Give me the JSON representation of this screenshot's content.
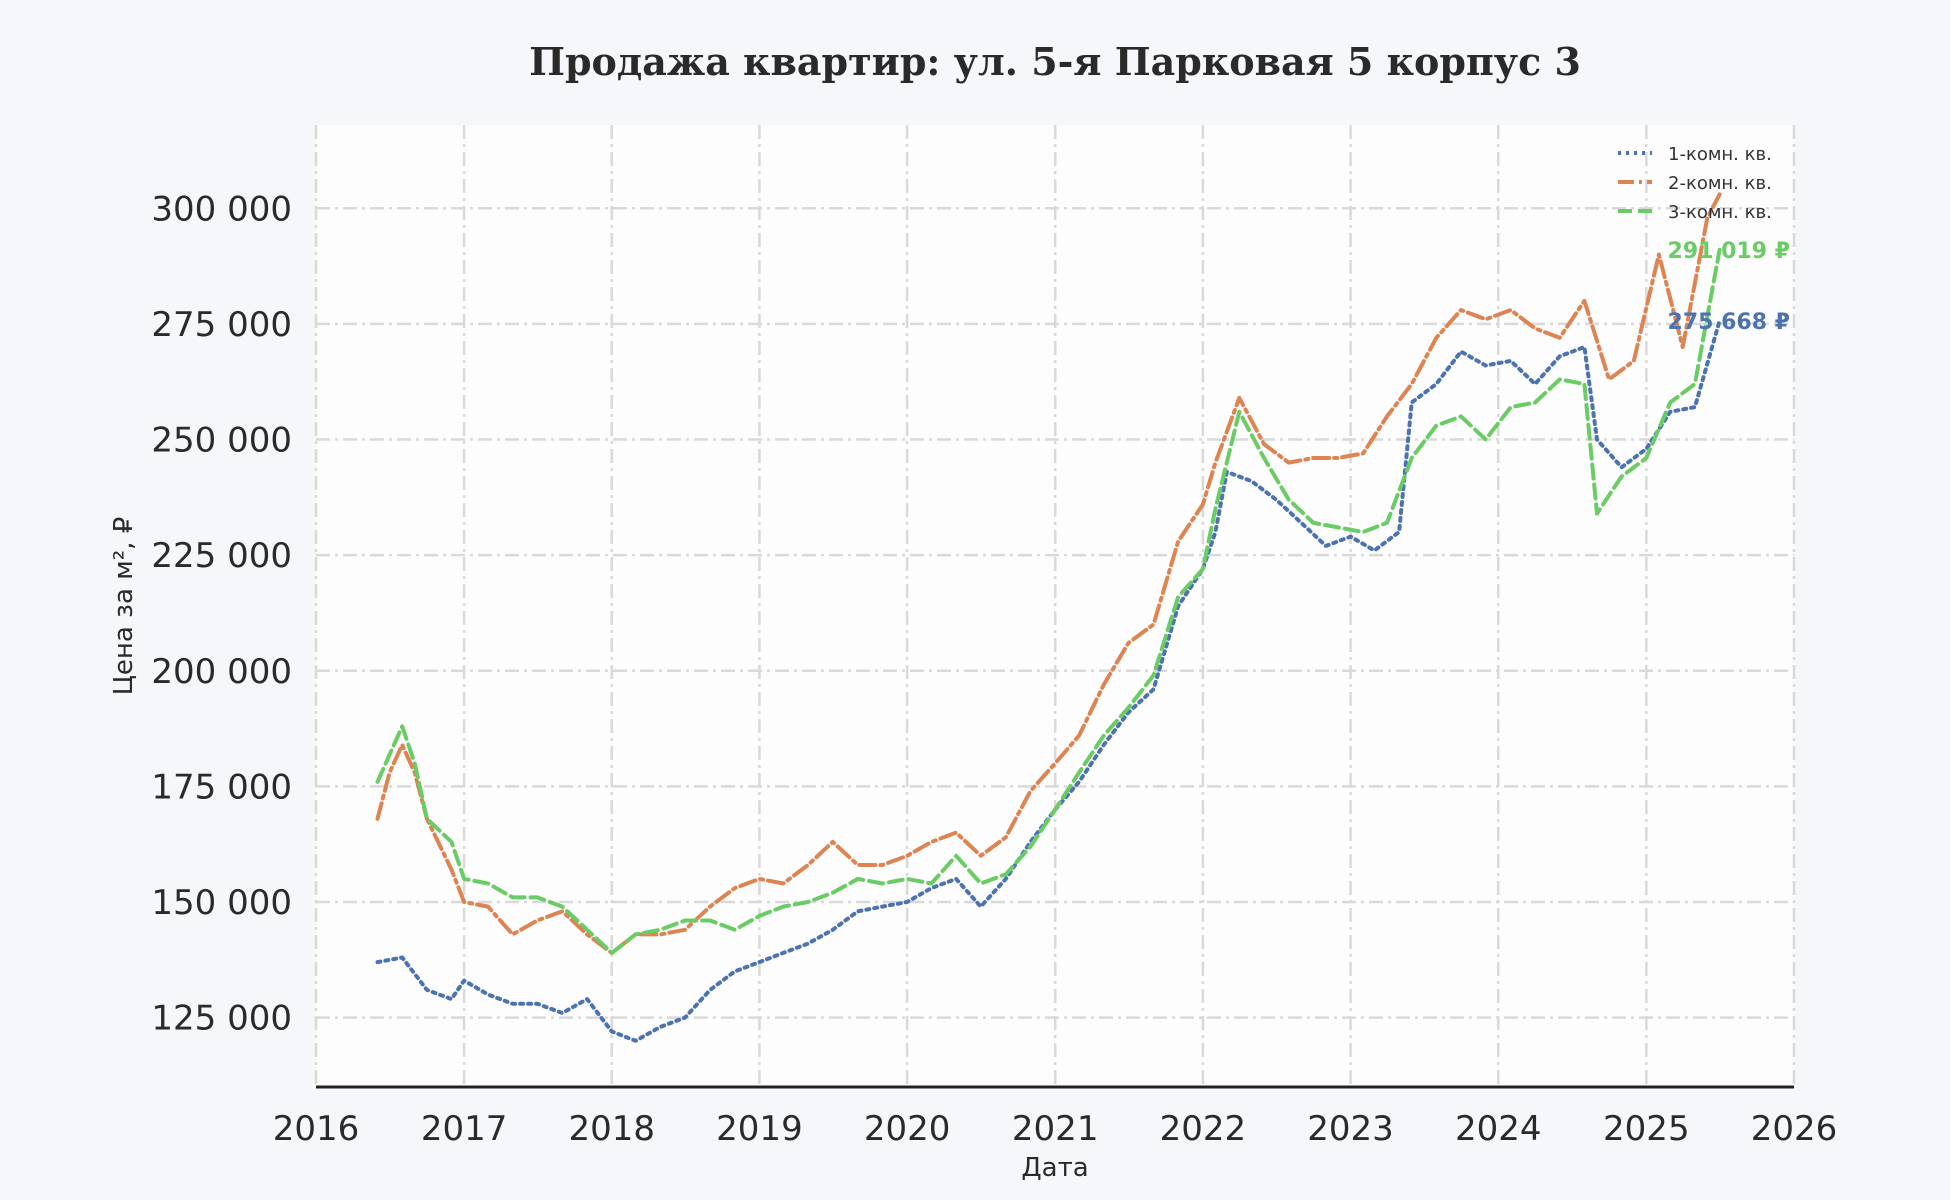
{
  "chart_data": {
    "type": "line",
    "title": "Продажа квартир: ул. 5-я Парковая 5 корпус 3",
    "xlabel": "Дата",
    "ylabel": "Цена за м², ₽",
    "xlim": [
      "2016-01-01",
      "2026-01-01"
    ],
    "ylim": [
      110000,
      318000
    ],
    "x_ticks": [
      "2016",
      "2017",
      "2018",
      "2019",
      "2020",
      "2021",
      "2022",
      "2023",
      "2024",
      "2025",
      "2026"
    ],
    "y_ticks": [
      {
        "value": 125000,
        "label": "125 000"
      },
      {
        "value": 150000,
        "label": "150 000"
      },
      {
        "value": 175000,
        "label": "175 000"
      },
      {
        "value": 200000,
        "label": "200 000"
      },
      {
        "value": 225000,
        "label": "225 000"
      },
      {
        "value": 250000,
        "label": "250 000"
      },
      {
        "value": 275000,
        "label": "275 000"
      },
      {
        "value": 300000,
        "label": "300 000"
      }
    ],
    "grid": true,
    "legend_position": "top-right",
    "series": [
      {
        "name": "1-комн. кв.",
        "color": "#4c72b0",
        "dash": "dotted",
        "end_label": "275 668 ₽",
        "points": [
          [
            "2016-06-01",
            137000
          ],
          [
            "2016-08-01",
            138000
          ],
          [
            "2016-10-01",
            131000
          ],
          [
            "2016-12-01",
            129000
          ],
          [
            "2017-01-01",
            133000
          ],
          [
            "2017-03-01",
            130000
          ],
          [
            "2017-05-01",
            128000
          ],
          [
            "2017-07-01",
            128000
          ],
          [
            "2017-09-01",
            126000
          ],
          [
            "2017-11-01",
            129000
          ],
          [
            "2018-01-01",
            122000
          ],
          [
            "2018-03-01",
            120000
          ],
          [
            "2018-05-01",
            123000
          ],
          [
            "2018-07-01",
            125000
          ],
          [
            "2018-09-01",
            131000
          ],
          [
            "2018-11-01",
            135000
          ],
          [
            "2019-01-01",
            137000
          ],
          [
            "2019-03-01",
            139000
          ],
          [
            "2019-05-01",
            141000
          ],
          [
            "2019-07-01",
            144000
          ],
          [
            "2019-09-01",
            148000
          ],
          [
            "2019-11-01",
            149000
          ],
          [
            "2020-01-01",
            150000
          ],
          [
            "2020-03-01",
            153000
          ],
          [
            "2020-05-01",
            155000
          ],
          [
            "2020-07-01",
            149000
          ],
          [
            "2020-09-01",
            155000
          ],
          [
            "2020-11-01",
            163000
          ],
          [
            "2021-01-01",
            170000
          ],
          [
            "2021-03-01",
            176000
          ],
          [
            "2021-05-01",
            184000
          ],
          [
            "2021-07-01",
            191000
          ],
          [
            "2021-09-01",
            196000
          ],
          [
            "2021-11-01",
            214000
          ],
          [
            "2022-01-01",
            222000
          ],
          [
            "2022-02-01",
            230000
          ],
          [
            "2022-03-01",
            243000
          ],
          [
            "2022-05-01",
            241000
          ],
          [
            "2022-07-01",
            237000
          ],
          [
            "2022-09-01",
            232000
          ],
          [
            "2022-11-01",
            227000
          ],
          [
            "2023-01-01",
            229000
          ],
          [
            "2023-03-01",
            226000
          ],
          [
            "2023-05-01",
            230000
          ],
          [
            "2023-06-01",
            258000
          ],
          [
            "2023-08-01",
            262000
          ],
          [
            "2023-10-01",
            269000
          ],
          [
            "2023-12-01",
            266000
          ],
          [
            "2024-02-01",
            267000
          ],
          [
            "2024-04-01",
            262000
          ],
          [
            "2024-06-01",
            268000
          ],
          [
            "2024-08-01",
            270000
          ],
          [
            "2024-09-01",
            250000
          ],
          [
            "2024-11-01",
            244000
          ],
          [
            "2025-01-01",
            248000
          ],
          [
            "2025-03-01",
            256000
          ],
          [
            "2025-05-01",
            257000
          ],
          [
            "2025-07-01",
            275668
          ]
        ]
      },
      {
        "name": "2-комн. кв.",
        "color": "#dd8452",
        "dash": "dashdot",
        "end_label": "",
        "points": [
          [
            "2016-06-01",
            168000
          ],
          [
            "2016-07-01",
            178000
          ],
          [
            "2016-08-01",
            184000
          ],
          [
            "2016-09-01",
            178000
          ],
          [
            "2016-10-01",
            168000
          ],
          [
            "2016-12-01",
            157000
          ],
          [
            "2017-01-01",
            150000
          ],
          [
            "2017-03-01",
            149000
          ],
          [
            "2017-05-01",
            143000
          ],
          [
            "2017-07-01",
            146000
          ],
          [
            "2017-09-01",
            148000
          ],
          [
            "2017-11-01",
            143000
          ],
          [
            "2018-01-01",
            139000
          ],
          [
            "2018-03-01",
            143000
          ],
          [
            "2018-05-01",
            143000
          ],
          [
            "2018-07-01",
            144000
          ],
          [
            "2018-09-01",
            149000
          ],
          [
            "2018-11-01",
            153000
          ],
          [
            "2019-01-01",
            155000
          ],
          [
            "2019-03-01",
            154000
          ],
          [
            "2019-05-01",
            158000
          ],
          [
            "2019-07-01",
            163000
          ],
          [
            "2019-09-01",
            158000
          ],
          [
            "2019-11-01",
            158000
          ],
          [
            "2020-01-01",
            160000
          ],
          [
            "2020-03-01",
            163000
          ],
          [
            "2020-05-01",
            165000
          ],
          [
            "2020-07-01",
            160000
          ],
          [
            "2020-09-01",
            164000
          ],
          [
            "2020-11-01",
            174000
          ],
          [
            "2021-01-01",
            180000
          ],
          [
            "2021-03-01",
            186000
          ],
          [
            "2021-05-01",
            197000
          ],
          [
            "2021-07-01",
            206000
          ],
          [
            "2021-09-01",
            210000
          ],
          [
            "2021-11-01",
            228000
          ],
          [
            "2022-01-01",
            236000
          ],
          [
            "2022-02-01",
            245000
          ],
          [
            "2022-04-01",
            259000
          ],
          [
            "2022-06-01",
            249000
          ],
          [
            "2022-08-01",
            245000
          ],
          [
            "2022-10-01",
            246000
          ],
          [
            "2022-12-01",
            246000
          ],
          [
            "2023-02-01",
            247000
          ],
          [
            "2023-04-01",
            255000
          ],
          [
            "2023-06-01",
            262000
          ],
          [
            "2023-08-01",
            272000
          ],
          [
            "2023-10-01",
            278000
          ],
          [
            "2023-12-01",
            276000
          ],
          [
            "2024-02-01",
            278000
          ],
          [
            "2024-04-01",
            274000
          ],
          [
            "2024-06-01",
            272000
          ],
          [
            "2024-08-01",
            280000
          ],
          [
            "2024-10-01",
            263000
          ],
          [
            "2024-12-01",
            267000
          ],
          [
            "2025-02-01",
            290000
          ],
          [
            "2025-04-01",
            270000
          ],
          [
            "2025-06-01",
            298000
          ],
          [
            "2025-07-01",
            303000
          ]
        ]
      },
      {
        "name": "3-комн. кв.",
        "color": "#6acc64",
        "dash": "dashed",
        "end_label": "291 019 ₽",
        "points": [
          [
            "2016-06-01",
            176000
          ],
          [
            "2016-08-01",
            188000
          ],
          [
            "2016-09-01",
            180000
          ],
          [
            "2016-10-01",
            168000
          ],
          [
            "2016-12-01",
            163000
          ],
          [
            "2017-01-01",
            155000
          ],
          [
            "2017-03-01",
            154000
          ],
          [
            "2017-05-01",
            151000
          ],
          [
            "2017-07-01",
            151000
          ],
          [
            "2017-09-01",
            149000
          ],
          [
            "2017-11-01",
            144000
          ],
          [
            "2018-01-01",
            139000
          ],
          [
            "2018-03-01",
            143000
          ],
          [
            "2018-05-01",
            144000
          ],
          [
            "2018-07-01",
            146000
          ],
          [
            "2018-09-01",
            146000
          ],
          [
            "2018-11-01",
            144000
          ],
          [
            "2019-01-01",
            147000
          ],
          [
            "2019-03-01",
            149000
          ],
          [
            "2019-05-01",
            150000
          ],
          [
            "2019-07-01",
            152000
          ],
          [
            "2019-09-01",
            155000
          ],
          [
            "2019-11-01",
            154000
          ],
          [
            "2020-01-01",
            155000
          ],
          [
            "2020-03-01",
            154000
          ],
          [
            "2020-05-01",
            160000
          ],
          [
            "2020-07-01",
            154000
          ],
          [
            "2020-09-01",
            156000
          ],
          [
            "2020-11-01",
            162000
          ],
          [
            "2021-01-01",
            170000
          ],
          [
            "2021-03-01",
            178000
          ],
          [
            "2021-05-01",
            186000
          ],
          [
            "2021-07-01",
            192000
          ],
          [
            "2021-09-01",
            199000
          ],
          [
            "2021-11-01",
            216000
          ],
          [
            "2022-01-01",
            222000
          ],
          [
            "2022-02-01",
            235000
          ],
          [
            "2022-04-01",
            256000
          ],
          [
            "2022-06-01",
            246000
          ],
          [
            "2022-08-01",
            237000
          ],
          [
            "2022-10-01",
            232000
          ],
          [
            "2022-12-01",
            231000
          ],
          [
            "2023-02-01",
            230000
          ],
          [
            "2023-04-01",
            232000
          ],
          [
            "2023-06-01",
            246000
          ],
          [
            "2023-08-01",
            253000
          ],
          [
            "2023-10-01",
            255000
          ],
          [
            "2023-12-01",
            250000
          ],
          [
            "2024-02-01",
            257000
          ],
          [
            "2024-04-01",
            258000
          ],
          [
            "2024-06-01",
            263000
          ],
          [
            "2024-08-01",
            262000
          ],
          [
            "2024-09-01",
            234000
          ],
          [
            "2024-11-01",
            242000
          ],
          [
            "2025-01-01",
            246000
          ],
          [
            "2025-03-01",
            258000
          ],
          [
            "2025-05-01",
            262000
          ],
          [
            "2025-07-01",
            291019
          ]
        ]
      }
    ]
  }
}
